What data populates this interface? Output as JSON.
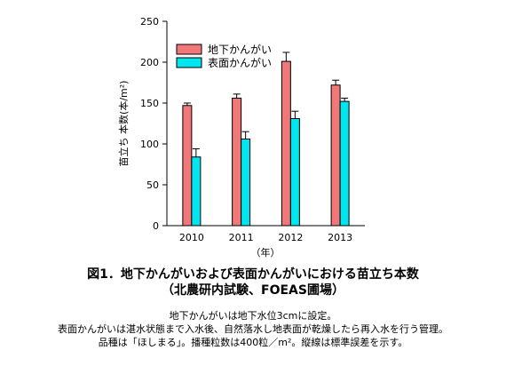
{
  "figure": {
    "title": "図1．地下かんがいおよび表面かんがいにおける苗立ち本数",
    "subtitle": "（北農研内試験、FOEAS圃場）",
    "notes": [
      "地下かんがいは地下水位3cmに設定。",
      "表面かんがいは湛水状態まで入水後、自然落水し地表面が乾燥したら再入水を行う管理。",
      "品種は「ほしまる」。播種粒数は400粒／m²。縦線は標準誤差を示す。"
    ]
  },
  "chart_data": {
    "type": "bar",
    "categories": [
      "2010",
      "2011",
      "2012",
      "2013"
    ],
    "xlabel": "（年）",
    "ylabel": "苗立ち 本数(本/m²)",
    "ylim": [
      0,
      250
    ],
    "yticks": [
      0,
      50,
      100,
      150,
      200,
      250
    ],
    "grid": false,
    "legend_position": "top-left",
    "series": [
      {
        "name": "地下かんがい",
        "color": "#f07878",
        "values": [
          147,
          156,
          201,
          172
        ],
        "errors": [
          3,
          5,
          11,
          6
        ]
      },
      {
        "name": "表面かんがい",
        "color": "#00e5ee",
        "values": [
          84,
          106,
          131,
          152
        ],
        "errors": [
          10,
          9,
          9,
          4
        ]
      }
    ]
  }
}
